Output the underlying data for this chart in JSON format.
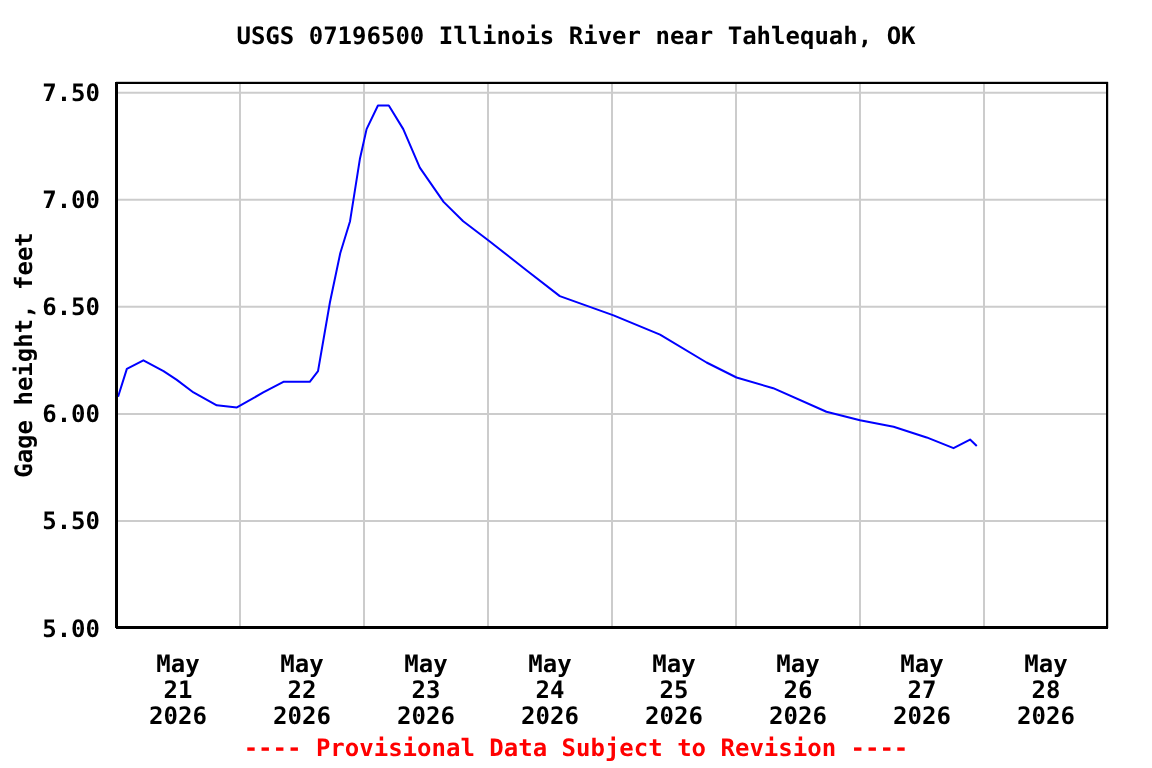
{
  "chart_data": {
    "type": "line",
    "title": "USGS 07196500 Illinois River near Tahlequah, OK",
    "ylabel": "Gage height, feet",
    "x": [
      "2026-05-21T00:24",
      "2026-05-21T02:06",
      "2026-05-21T05:18",
      "2026-05-21T09:12",
      "2026-05-21T11:42",
      "2026-05-21T15:00",
      "2026-05-21T19:30",
      "2026-05-21T23:24",
      "2026-05-22T04:30",
      "2026-05-22T08:24",
      "2026-05-22T13:30",
      "2026-05-22T15:06",
      "2026-05-22T17:24",
      "2026-05-22T19:24",
      "2026-05-22T21:18",
      "2026-05-22T23:12",
      "2026-05-23T00:30",
      "2026-05-23T02:42",
      "2026-05-23T04:48",
      "2026-05-23T07:36",
      "2026-05-23T10:48",
      "2026-05-23T15:24",
      "2026-05-23T19:12",
      "2026-05-24T00:06",
      "2026-05-24T07:30",
      "2026-05-24T13:54",
      "2026-05-25T00:18",
      "2026-05-25T09:18",
      "2026-05-25T18:18",
      "2026-05-26T00:06",
      "2026-05-26T07:12",
      "2026-05-26T17:30",
      "2026-05-27T00:00",
      "2026-05-27T06:30",
      "2026-05-27T12:54",
      "2026-05-27T18:06",
      "2026-05-27T21:18",
      "2026-05-27T22:36"
    ],
    "series": [
      {
        "color": "#0000ff",
        "values": [
          6.08,
          6.21,
          6.25,
          6.2,
          6.16,
          6.1,
          6.04,
          6.03,
          6.1,
          6.15,
          6.15,
          6.2,
          6.52,
          6.75,
          6.9,
          7.19,
          7.33,
          7.44,
          7.44,
          7.33,
          7.15,
          6.99,
          6.9,
          6.81,
          6.67,
          6.55,
          6.46,
          6.37,
          6.24,
          6.17,
          6.12,
          6.01,
          5.97,
          5.94,
          5.89,
          5.84,
          5.88,
          5.85
        ]
      }
    ],
    "xlim": [
      "2026-05-21T00:00",
      "2026-05-29T00:00"
    ],
    "xticks": [
      {
        "value": "2026-05-21T00:00",
        "label": null
      },
      {
        "value": "2026-05-21T12:00",
        "label": "May 21 2026"
      },
      {
        "value": "2026-05-22T00:00",
        "label": null
      },
      {
        "value": "2026-05-22T12:00",
        "label": "May 22 2026"
      },
      {
        "value": "2026-05-23T00:00",
        "label": null
      },
      {
        "value": "2026-05-23T12:00",
        "label": "May 23 2026"
      },
      {
        "value": "2026-05-24T00:00",
        "label": null
      },
      {
        "value": "2026-05-24T12:00",
        "label": "May 24 2026"
      },
      {
        "value": "2026-05-25T00:00",
        "label": null
      },
      {
        "value": "2026-05-25T12:00",
        "label": "May 25 2026"
      },
      {
        "value": "2026-05-26T00:00",
        "label": null
      },
      {
        "value": "2026-05-26T12:00",
        "label": "May 26 2026"
      },
      {
        "value": "2026-05-27T00:00",
        "label": null
      },
      {
        "value": "2026-05-27T12:00",
        "label": "May 27 2026"
      },
      {
        "value": "2026-05-28T00:00",
        "label": null
      },
      {
        "value": "2026-05-28T12:00",
        "label": "May 28 2026"
      },
      {
        "value": "2026-05-29T00:00",
        "label": null
      }
    ],
    "ylim": [
      5.0,
      7.55
    ],
    "yticks": [
      {
        "value": 5.0,
        "label": "5.00"
      },
      {
        "value": 5.5,
        "label": "5.50"
      },
      {
        "value": 6.0,
        "label": "6.00"
      },
      {
        "value": 6.5,
        "label": "6.50"
      },
      {
        "value": 7.0,
        "label": "7.00"
      },
      {
        "value": 7.5,
        "label": "7.50"
      }
    ],
    "grid": true,
    "marker": "none",
    "line_style": "solid",
    "annotations": [
      "---- Provisional Data Subject to Revision ----"
    ]
  }
}
